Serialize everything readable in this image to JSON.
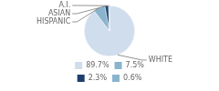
{
  "chart_data": {
    "type": "pie",
    "categories": [
      "WHITE",
      "HISPANIC",
      "ASIAN",
      "A.I."
    ],
    "values": [
      89.7,
      7.5,
      2.3,
      0.6
    ],
    "value_labels": [
      "89.7%",
      "7.5%",
      "2.3%",
      "0.6%"
    ],
    "colors": [
      "#cfdded",
      "#8ab4ce",
      "#1e3f6e",
      "#8ab4ce"
    ],
    "legend": "bottom"
  }
}
